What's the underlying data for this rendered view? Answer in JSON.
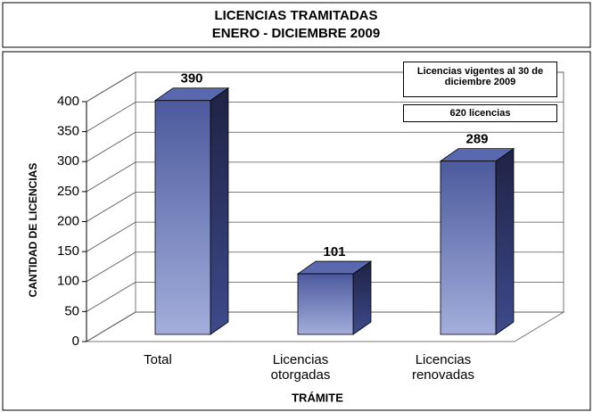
{
  "chart_data": {
    "type": "bar3d",
    "title": "LICENCIAS TRAMITADAS",
    "subtitle": "ENERO - DICIEMBRE 2009",
    "ylabel": "CANTIDAD DE LICENCIAS",
    "xlabel": "TRÁMITE",
    "categories": [
      "Total",
      "Licencias otorgadas",
      "Licencias renovadas"
    ],
    "values": [
      390,
      101,
      289
    ],
    "color": "#5a68b0",
    "ylim": [
      0,
      400
    ],
    "yticks": [
      0,
      50,
      100,
      150,
      200,
      250,
      300,
      350,
      400
    ],
    "grid": true,
    "annotations": [
      "Licencias vigentes al 30 de diciembre 2009",
      "620 licencias"
    ]
  }
}
